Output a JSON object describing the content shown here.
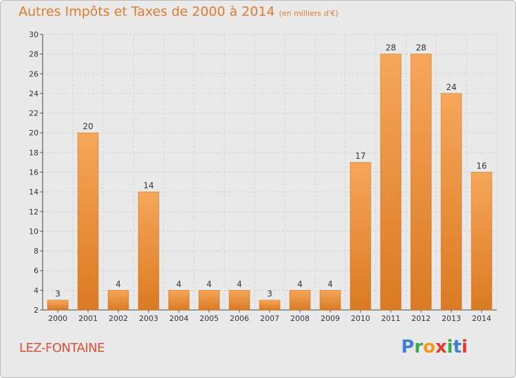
{
  "header": {
    "title": "Autres Impôts et Taxes de 2000 à 2014",
    "subtitle": "(en milliers d'€)"
  },
  "footer": {
    "commune": "LEZ-FONTAINE",
    "logo": {
      "letters": [
        "P",
        "r",
        "o",
        "x",
        "i",
        "t",
        "i"
      ],
      "colors": [
        "#3d7fd8",
        "#3aa84c",
        "#f29a1b",
        "#e53b2f",
        "#3aa84c",
        "#3d7fd8",
        "#e53b2f"
      ]
    }
  },
  "chart_data": {
    "type": "bar",
    "categories": [
      "2000",
      "2001",
      "2002",
      "2003",
      "2004",
      "2005",
      "2006",
      "2007",
      "2008",
      "2009",
      "2010",
      "2011",
      "2012",
      "2013",
      "2014"
    ],
    "values": [
      3,
      20,
      4,
      14,
      4,
      4,
      4,
      3,
      4,
      4,
      17,
      28,
      28,
      24,
      16
    ],
    "yticks": [
      2,
      4,
      6,
      8,
      10,
      12,
      14,
      16,
      18,
      20,
      22,
      24,
      26,
      28,
      30
    ],
    "ylim": [
      2,
      30
    ],
    "grid": true,
    "bar_colors": {
      "light": "#f6a65a",
      "dark": "#db7a22"
    }
  }
}
